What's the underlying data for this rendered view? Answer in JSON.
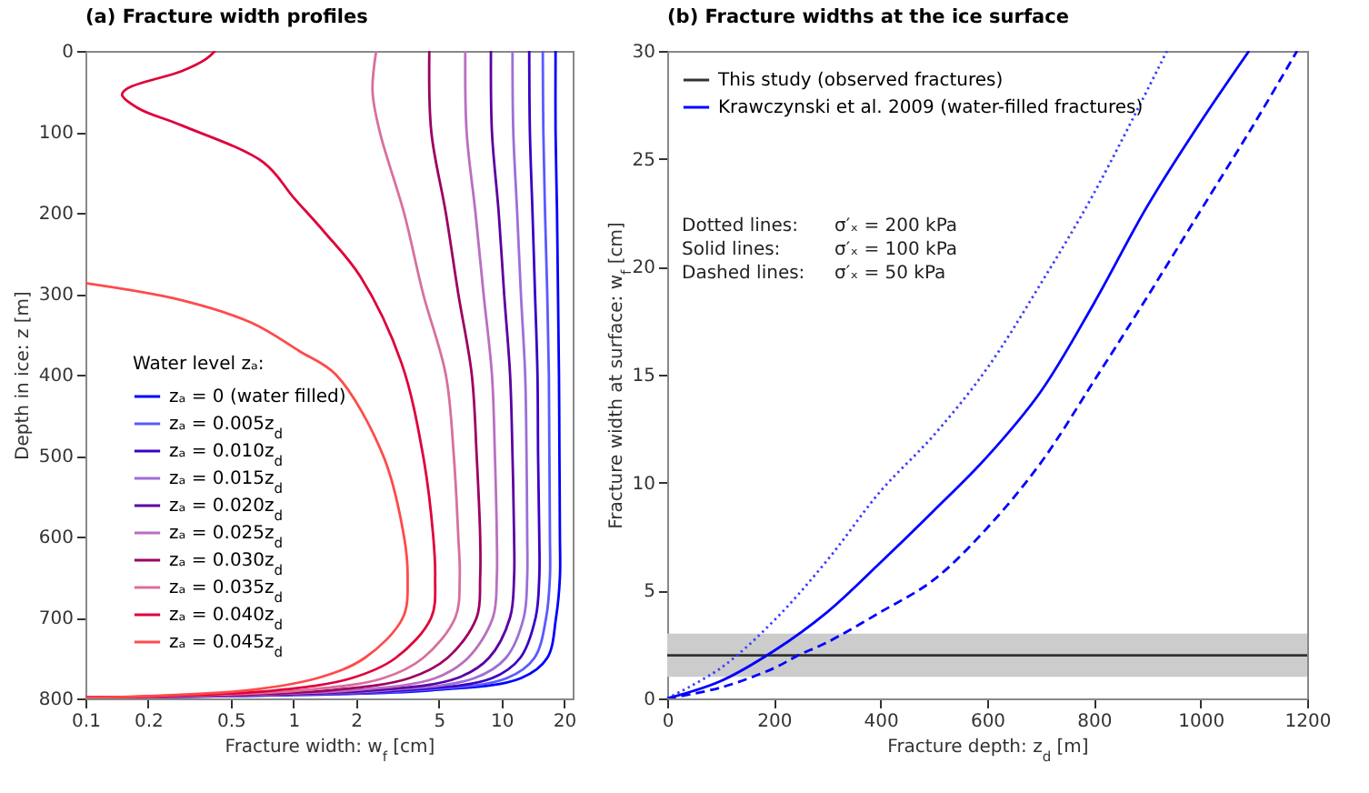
{
  "chart_data": [
    {
      "type": "line",
      "title": "(a) Fracture width profiles",
      "xlabel": "Fracture width: w$_{f}$ [cm]",
      "ylabel": "Depth in ice: z [m]",
      "legend_title": "Water level zₐ:",
      "legend": "bottom left",
      "log": "x",
      "xlim": [
        0.1,
        22
      ],
      "xticks": [
        0.1,
        0.2,
        0.5,
        1,
        2,
        5,
        10,
        20
      ],
      "ylim": [
        800,
        0
      ],
      "yticks": [
        0,
        100,
        200,
        300,
        400,
        500,
        600,
        700,
        800
      ],
      "series": [
        {
          "name": "zₐ = 0 (water filled)",
          "color": "#0000ff",
          "x": [
            18.2,
            18.2,
            18.5,
            18.7,
            18.9,
            19.0,
            19.1,
            19.1,
            18.3,
            16.6,
            12.4,
            4.6,
            0.5,
            0.1
          ],
          "values": [
            0,
            100,
            200,
            300,
            400,
            500,
            600,
            650,
            700,
            750,
            775,
            790,
            797,
            799
          ]
        },
        {
          "name": "zₐ = 0.005z$_{d}$",
          "color": "#5a5aff",
          "x": [
            15.8,
            15.9,
            16.2,
            16.6,
            16.9,
            17.0,
            17.1,
            17.1,
            16.4,
            14.4,
            10.6,
            3.9,
            0.45,
            0.1
          ],
          "values": [
            0,
            100,
            200,
            300,
            400,
            500,
            600,
            650,
            700,
            750,
            775,
            790,
            797,
            799
          ]
        },
        {
          "name": "zₐ = 0.010z$_{d}$",
          "color": "#3900c6",
          "x": [
            13.6,
            13.7,
            14.1,
            14.5,
            14.9,
            15.0,
            15.2,
            15.2,
            14.6,
            12.3,
            9.0,
            3.3,
            0.4,
            0.1
          ],
          "values": [
            0,
            100,
            200,
            300,
            400,
            500,
            600,
            650,
            700,
            750,
            775,
            790,
            797,
            799
          ]
        },
        {
          "name": "zₐ = 0.015z$_{d}$",
          "color": "#9c6fd6",
          "x": [
            11.3,
            11.4,
            11.9,
            12.4,
            13.0,
            13.2,
            13.3,
            13.3,
            12.8,
            10.5,
            7.4,
            2.8,
            0.38,
            0.1
          ],
          "values": [
            0,
            100,
            200,
            300,
            400,
            500,
            600,
            650,
            700,
            750,
            775,
            790,
            797,
            799
          ]
        },
        {
          "name": "zₐ = 0.020z$_{d}$",
          "color": "#5b00a3",
          "x": [
            8.9,
            9.0,
            9.7,
            10.3,
            11.0,
            11.3,
            11.5,
            11.5,
            11.0,
            8.7,
            6.1,
            2.4,
            0.35,
            0.1
          ],
          "values": [
            0,
            100,
            200,
            300,
            400,
            500,
            600,
            650,
            700,
            750,
            775,
            790,
            797,
            799
          ]
        },
        {
          "name": "zₐ = 0.025z$_{d}$",
          "color": "#b96fc0",
          "x": [
            6.7,
            6.8,
            7.5,
            8.2,
            9.0,
            9.3,
            9.5,
            9.5,
            9.1,
            6.9,
            4.8,
            1.9,
            0.32,
            0.1
          ],
          "values": [
            0,
            100,
            200,
            300,
            400,
            500,
            600,
            650,
            700,
            750,
            775,
            790,
            797,
            799
          ]
        },
        {
          "name": "zₐ = 0.030z$_{d}$",
          "color": "#9d0062",
          "x": [
            4.5,
            4.6,
            5.4,
            6.2,
            7.2,
            7.6,
            7.9,
            7.9,
            7.6,
            5.5,
            3.6,
            1.5,
            0.3,
            0.1
          ],
          "values": [
            0,
            100,
            200,
            300,
            400,
            500,
            600,
            650,
            700,
            750,
            775,
            790,
            797,
            799
          ]
        },
        {
          "name": "zₐ = 0.035z$_{d}$",
          "color": "#d86f9e",
          "x": [
            2.5,
            2.4,
            2.6,
            3.4,
            4.2,
            5.4,
            5.9,
            6.2,
            6.3,
            6.0,
            4.2,
            2.7,
            1.1,
            0.27,
            0.1
          ],
          "values": [
            0,
            50,
            100,
            200,
            300,
            400,
            500,
            600,
            650,
            700,
            750,
            775,
            790,
            797,
            799
          ]
        },
        {
          "name": "zₐ = 0.040z$_{d}$",
          "color": "#e0003a",
          "x": [
            0.42,
            0.38,
            0.29,
            0.16,
            0.15,
            0.18,
            0.29,
            0.72,
            1.0,
            1.4,
            2.1,
            3.3,
            4.2,
            4.7,
            4.8,
            4.6,
            3.1,
            1.9,
            0.82,
            0.24,
            0.1
          ],
          "values": [
            0,
            10,
            25,
            46,
            54,
            71,
            92,
            138,
            181,
            223,
            279,
            385,
            500,
            600,
            650,
            700,
            750,
            775,
            790,
            797,
            799
          ]
        },
        {
          "name": "zₐ = 0.045z$_{d}$",
          "color": "#ff4a4a",
          "x": [
            0.1,
            0.29,
            0.63,
            1.07,
            1.6,
            2.7,
            3.4,
            3.54,
            3.36,
            2.2,
            1.3,
            0.6,
            0.2,
            0.1
          ],
          "values": [
            287,
            308,
            336,
            371,
            400,
            500,
            600,
            650,
            700,
            750,
            775,
            790,
            797,
            799
          ]
        }
      ]
    },
    {
      "type": "line",
      "title": "(b) Fracture widths at the ice surface",
      "xlabel": "Fracture depth: z$_{d}$ [m]",
      "ylabel": "Fracture width at surface: w$_{f}$ [cm]",
      "legend": "top left",
      "xlim": [
        0,
        1200
      ],
      "xticks": [
        0,
        200,
        400,
        600,
        800,
        1000,
        1200
      ],
      "ylim": [
        0,
        30
      ],
      "yticks": [
        0,
        5,
        10,
        15,
        20,
        25,
        30
      ],
      "bands": [
        {
          "axis": "y",
          "from": 1,
          "to": 3,
          "color": "#cccccc"
        }
      ],
      "annotations": [
        "Dotted lines:",
        "σ′ₓ = 200 kPa",
        "Solid lines:",
        "σ′ₓ = 100 kPa",
        "Dashed lines:",
        "σ′ₓ = 50 kPa"
      ],
      "series": [
        {
          "name": "This study (observed fractures)",
          "color": "#333333",
          "x": [
            0,
            1200
          ],
          "values": [
            2,
            2
          ]
        },
        {
          "name": "Krawczynski et al. 2009 (water-filled fractures)",
          "color": "#0000ff",
          "line_style": "solid",
          "x": [
            0,
            100,
            200,
            300,
            400,
            500,
            600,
            700,
            800,
            900,
            1000,
            1091
          ],
          "values": [
            0,
            0.8,
            2.2,
            4.0,
            6.3,
            8.7,
            11.2,
            14.2,
            18.3,
            22.8,
            26.7,
            30
          ]
        },
        {
          "color": "#3c3cff",
          "line_style": "dotted",
          "x": [
            0,
            100,
            200,
            300,
            400,
            500,
            600,
            700,
            800,
            937
          ],
          "values": [
            0,
            1.4,
            3.6,
            6.4,
            9.6,
            12.2,
            15.3,
            19.2,
            23.4,
            30
          ]
        },
        {
          "color": "#0000ff",
          "line_style": "dashed",
          "x": [
            0,
            100,
            200,
            246,
            300,
            400,
            500,
            600,
            700,
            800,
            900,
            1000,
            1100,
            1181
          ],
          "values": [
            0,
            0.5,
            1.4,
            2.0,
            2.6,
            4.0,
            5.5,
            7.9,
            10.9,
            14.7,
            18.6,
            22.6,
            26.6,
            30
          ]
        }
      ]
    }
  ]
}
